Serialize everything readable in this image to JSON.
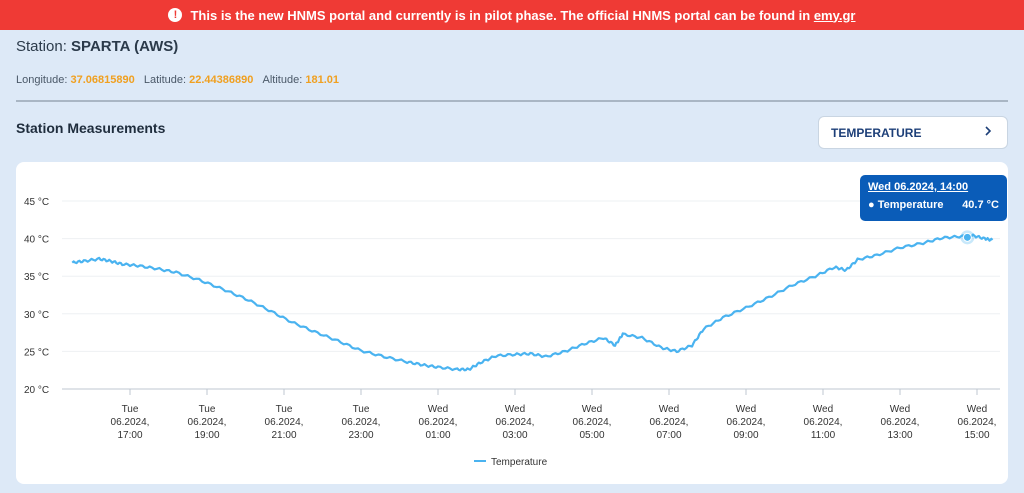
{
  "banner": {
    "text": "This is the new HNMS portal and currently is in pilot phase. The official HNMS portal can be found in ",
    "link": "emy.gr"
  },
  "station": {
    "label": "Station:",
    "name": "SPARTA (AWS)"
  },
  "coords": {
    "longitude_label": "Longitude:",
    "longitude": "37.06815890",
    "latitude_label": "Latitude:",
    "latitude": "22.44386890",
    "altitude_label": "Altitude:",
    "altitude": "181.01"
  },
  "section_title": "Station Measurements",
  "variable_select": {
    "value": "TEMPERATURE",
    "icon": "chevron-right-icon"
  },
  "tooltip": {
    "title": "Wed 06.2024, 14:00",
    "series": "Temperature",
    "value": "40.7 °C"
  },
  "colors": {
    "line": "#4ab3f0",
    "accent": "#0a5cb8",
    "banner": "#ef3a35",
    "coord_value": "#f0a020"
  },
  "chart_data": {
    "type": "line",
    "x_unit": "hours from 16:00 Tue",
    "x_range": [
      0,
      23.6
    ],
    "ylim": [
      20,
      47
    ],
    "yticks": [
      20,
      25,
      30,
      35,
      40,
      45
    ],
    "ytick_labels": [
      "20 °C",
      "25 °C",
      "30 °C",
      "35 °C",
      "40 °C",
      "45 °C"
    ],
    "xticks": [
      {
        "x": 1,
        "day": "Tue",
        "date": "06.2024,",
        "time": "17:00"
      },
      {
        "x": 3,
        "day": "Tue",
        "date": "06.2024,",
        "time": "19:00"
      },
      {
        "x": 5,
        "day": "Tue",
        "date": "06.2024,",
        "time": "21:00"
      },
      {
        "x": 7,
        "day": "Tue",
        "date": "06.2024,",
        "time": "23:00"
      },
      {
        "x": 9,
        "day": "Wed",
        "date": "06.2024,",
        "time": "01:00"
      },
      {
        "x": 11,
        "day": "Wed",
        "date": "06.2024,",
        "time": "03:00"
      },
      {
        "x": 13,
        "day": "Wed",
        "date": "06.2024,",
        "time": "05:00"
      },
      {
        "x": 15,
        "day": "Wed",
        "date": "06.2024,",
        "time": "07:00"
      },
      {
        "x": 17,
        "day": "Wed",
        "date": "06.2024,",
        "time": "09:00"
      },
      {
        "x": 19,
        "day": "Wed",
        "date": "06.2024,",
        "time": "11:00"
      },
      {
        "x": 21,
        "day": "Wed",
        "date": "06.2024,",
        "time": "13:00"
      },
      {
        "x": 23,
        "day": "Wed",
        "date": "06.2024,",
        "time": "15:00"
      }
    ],
    "series": [
      {
        "name": "Temperature",
        "points": [
          [
            -0.5,
            36.8
          ],
          [
            -0.2,
            37.0
          ],
          [
            0.2,
            37.3
          ],
          [
            0.5,
            37.0
          ],
          [
            0.8,
            36.6
          ],
          [
            1.2,
            36.4
          ],
          [
            1.7,
            36.0
          ],
          [
            2.2,
            35.5
          ],
          [
            2.8,
            34.5
          ],
          [
            3.4,
            33.3
          ],
          [
            4.0,
            32.0
          ],
          [
            4.6,
            30.5
          ],
          [
            5.2,
            28.9
          ],
          [
            5.8,
            27.6
          ],
          [
            6.4,
            26.4
          ],
          [
            7.0,
            25.1
          ],
          [
            7.6,
            24.3
          ],
          [
            8.2,
            23.6
          ],
          [
            8.6,
            23.2
          ],
          [
            9.0,
            22.9
          ],
          [
            9.5,
            22.6
          ],
          [
            9.8,
            22.6
          ],
          [
            10.1,
            23.5
          ],
          [
            10.5,
            24.4
          ],
          [
            11.0,
            24.6
          ],
          [
            11.4,
            24.7
          ],
          [
            11.8,
            24.3
          ],
          [
            12.3,
            25.0
          ],
          [
            12.8,
            26.0
          ],
          [
            13.3,
            26.8
          ],
          [
            13.6,
            25.8
          ],
          [
            13.8,
            27.3
          ],
          [
            14.3,
            26.8
          ],
          [
            14.8,
            25.5
          ],
          [
            15.2,
            25.0
          ],
          [
            15.6,
            25.8
          ],
          [
            15.9,
            28.0
          ],
          [
            16.4,
            29.5
          ],
          [
            17.0,
            30.8
          ],
          [
            17.6,
            32.2
          ],
          [
            18.2,
            33.8
          ],
          [
            18.8,
            35.0
          ],
          [
            19.3,
            36.2
          ],
          [
            19.6,
            35.8
          ],
          [
            19.9,
            37.2
          ],
          [
            20.4,
            37.8
          ],
          [
            21.0,
            38.8
          ],
          [
            21.6,
            39.4
          ],
          [
            22.1,
            40.1
          ],
          [
            22.6,
            40.3
          ],
          [
            22.9,
            40.4
          ],
          [
            23.2,
            40.0
          ],
          [
            23.4,
            39.8
          ]
        ]
      }
    ],
    "highlight": {
      "x": 22.75,
      "y": 40.7
    },
    "legend": "bottom-center"
  }
}
